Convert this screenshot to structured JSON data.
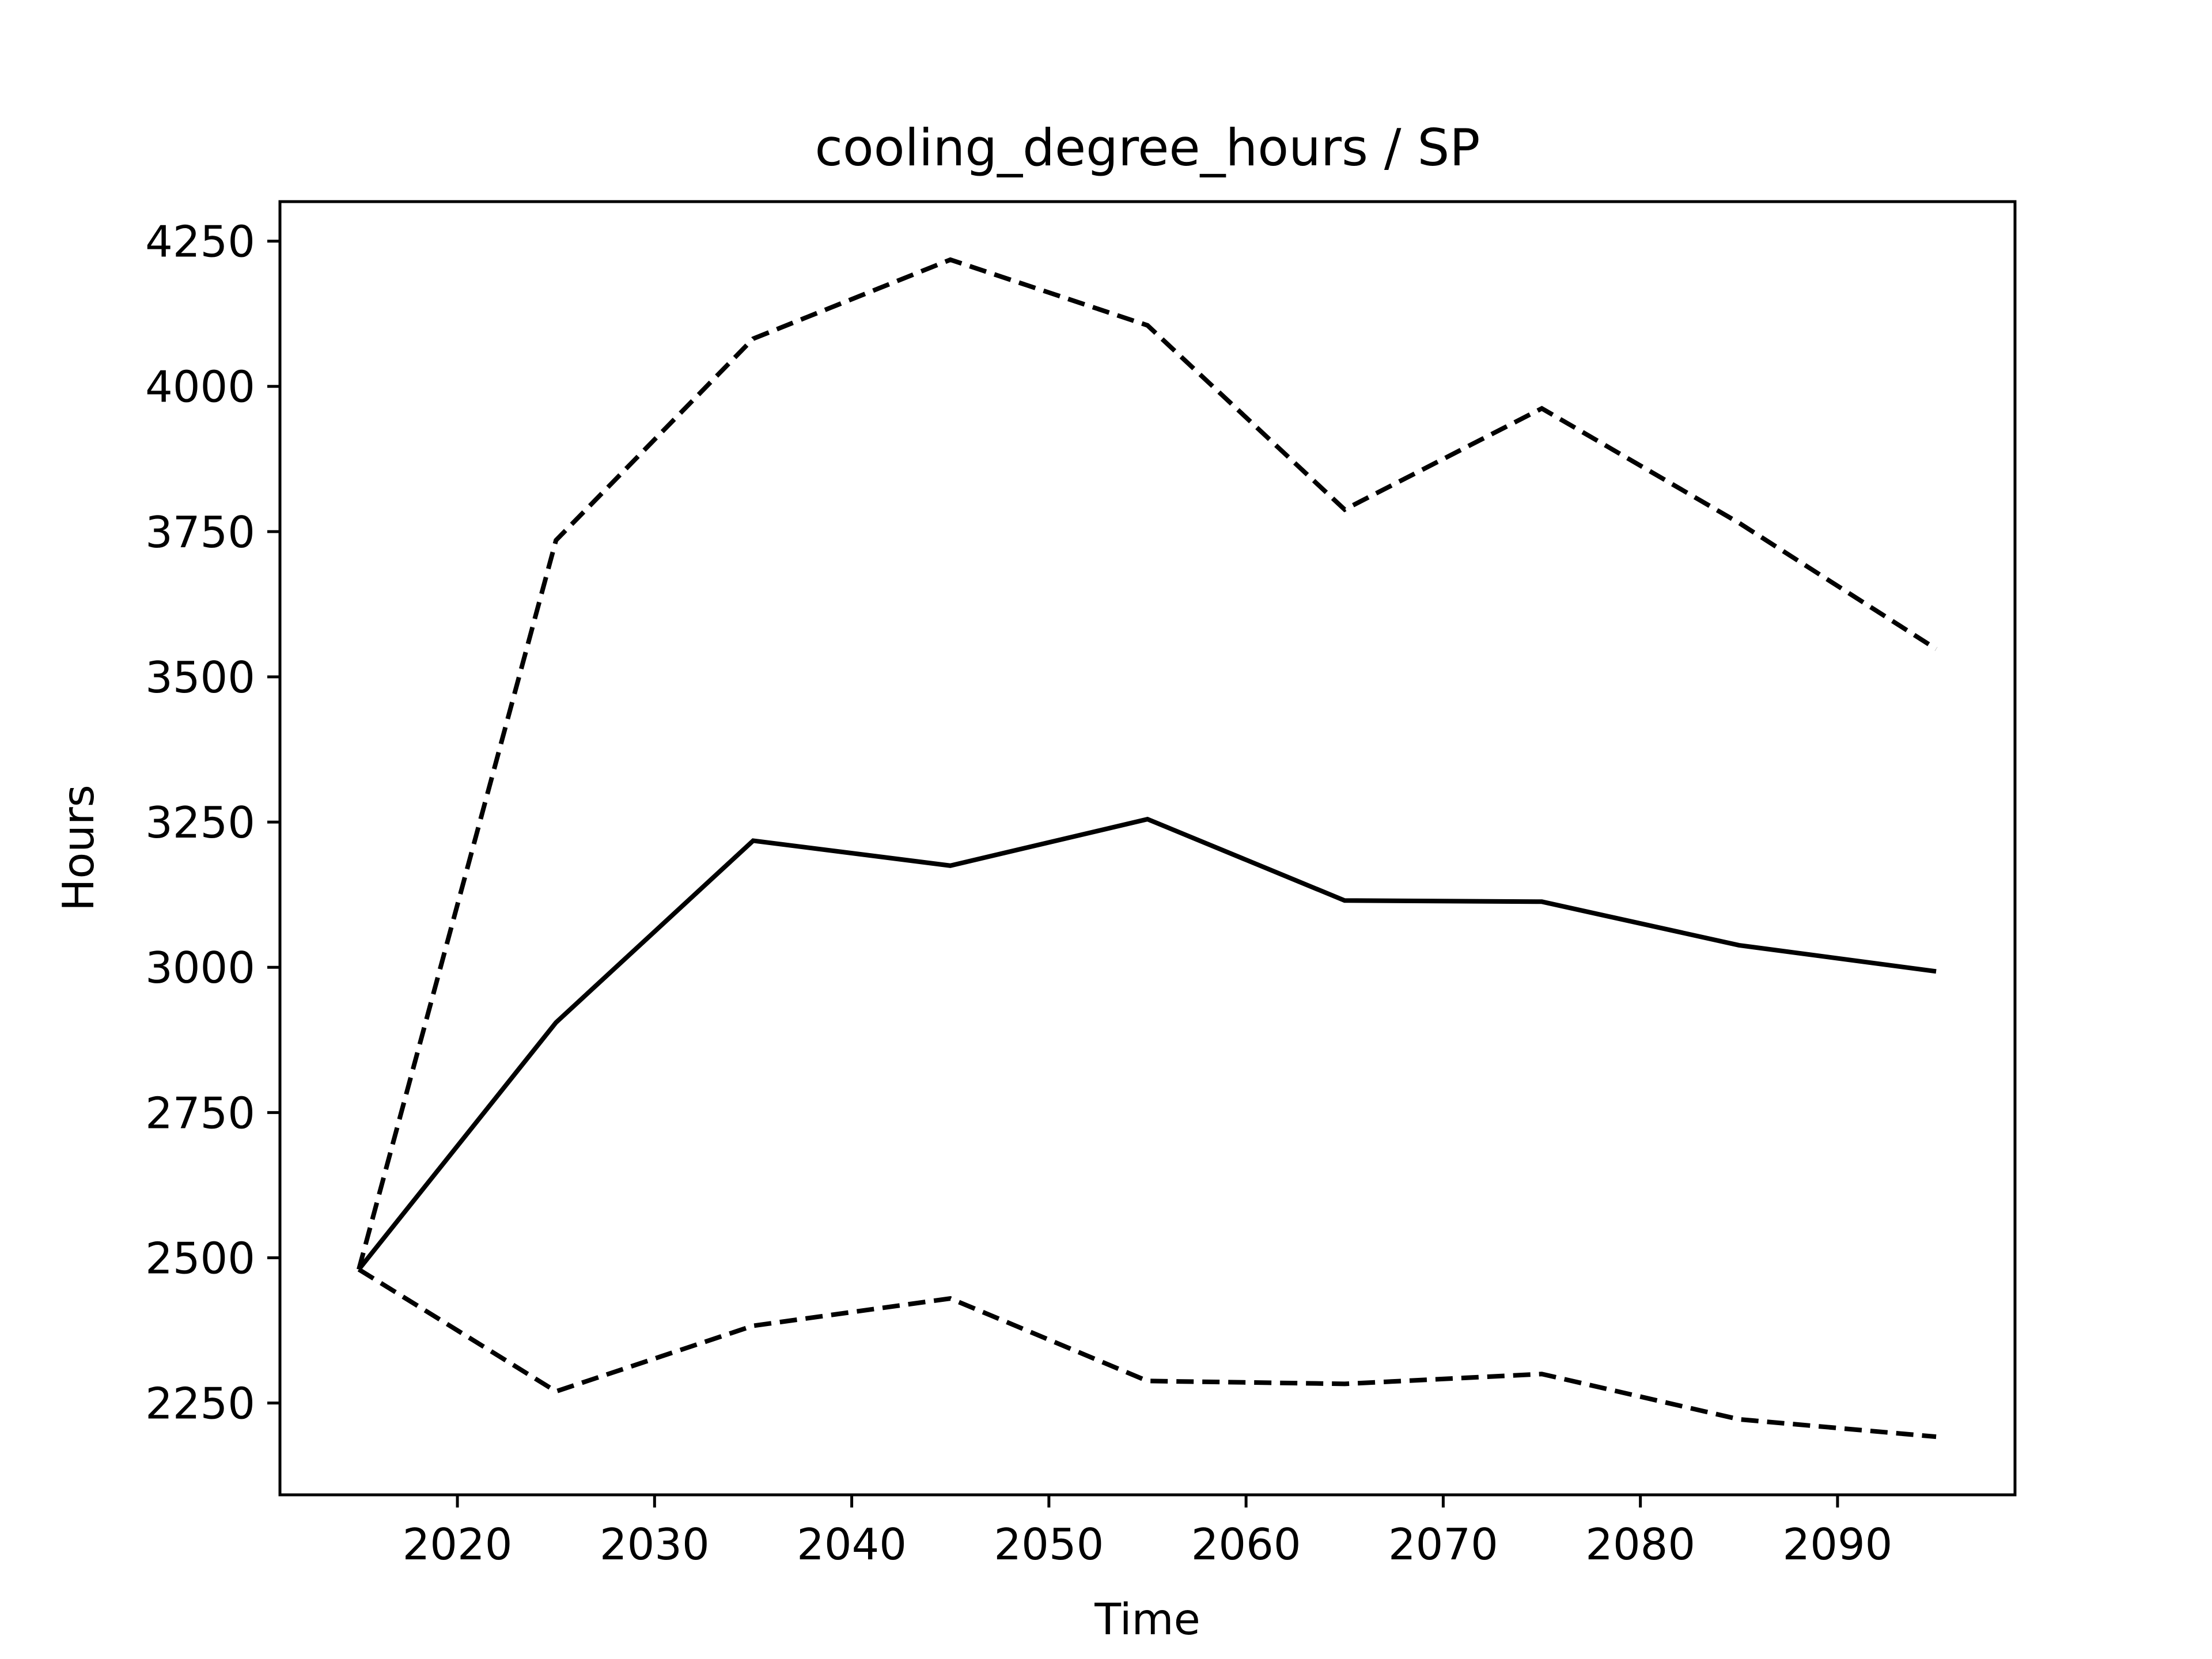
{
  "chart_data": {
    "type": "line",
    "title": "cooling_degree_hours / SP",
    "xlabel": "Time",
    "ylabel": "Hours",
    "xlim": [
      2011,
      2099
    ],
    "ylim": [
      2092,
      4318
    ],
    "x_ticks": [
      2020,
      2030,
      2040,
      2050,
      2060,
      2070,
      2080,
      2090
    ],
    "y_ticks": [
      2250,
      2500,
      2750,
      3000,
      3250,
      3500,
      3750,
      4000,
      4250
    ],
    "grid": false,
    "legend": "none",
    "x": [
      2015,
      2025,
      2035,
      2045,
      2055,
      2065,
      2075,
      2085,
      2095
    ],
    "series": [
      {
        "style": "solid",
        "color": "#000000",
        "values": [
          2480,
          2905,
          3218,
          3175,
          3255,
          3115,
          3113,
          3038,
          2993
        ]
      },
      {
        "style": "dashed",
        "color": "#000000",
        "values": [
          2480,
          3735,
          4082,
          4218,
          4105,
          3788,
          3962,
          3765,
          3548
        ]
      },
      {
        "style": "dashed",
        "color": "#000000",
        "values": [
          2480,
          2270,
          2383,
          2430,
          2288,
          2283,
          2300,
          2222,
          2192
        ]
      }
    ]
  }
}
